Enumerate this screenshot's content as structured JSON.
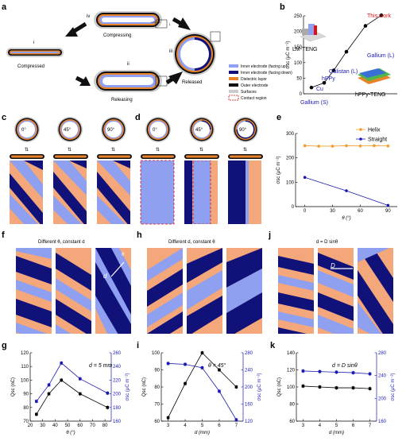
{
  "panels": {
    "a": {
      "letter": "a",
      "states": [
        "i",
        "ii",
        "iii",
        "iv"
      ],
      "captions": {
        "compressed": "Compressed",
        "compressing": "Compressing",
        "releasing": "Releasing",
        "released": "Released"
      },
      "legend": [
        {
          "label": "Inner electrode (facing up)",
          "color": "#8fa0f0"
        },
        {
          "label": "Inner electrode (facing down)",
          "color": "#11117a"
        },
        {
          "label": "Dielectric layer",
          "color": "#e8832a"
        },
        {
          "label": "Outer electrode",
          "color": "#111111"
        },
        {
          "label": "Surfaces",
          "color": "#cccccc"
        },
        {
          "label": "Contact region",
          "color": "#e01010"
        }
      ]
    },
    "b": {
      "letter": "b",
      "lm_label": "LM-TENG",
      "hppy_label": "hPPy-TENG"
    },
    "c": {
      "letter": "c",
      "angles": [
        "0°",
        "45°",
        "90°"
      ]
    },
    "d": {
      "letter": "d",
      "angles": [
        "0°",
        "45°",
        "90°"
      ]
    },
    "e": {
      "letter": "e"
    },
    "f": {
      "letter": "f",
      "title": "Different θ, constant d",
      "d_label": "d",
      "theta_label": "θ"
    },
    "h": {
      "letter": "h",
      "title": "Different d, constant θ"
    },
    "j": {
      "letter": "j",
      "title": "d = D sinθ",
      "D_label": "D"
    },
    "g": {
      "letter": "g",
      "annotation": "d = 5 mm"
    },
    "i": {
      "letter": "i",
      "annotation": "θ = 45°"
    },
    "k": {
      "letter": "k",
      "annotation": "d = D sinθ"
    }
  },
  "chart_data": [
    {
      "id": "b",
      "type": "scatter",
      "ylabel": "σsc (μC m⁻²)",
      "ylim": [
        0,
        250
      ],
      "yticks": [
        0,
        50,
        100,
        150,
        200,
        250
      ],
      "points": [
        {
          "label": "Gallium (S)",
          "y": 20,
          "color": "#1a1ab0"
        },
        {
          "label": "Cu",
          "y": 35,
          "color": "#1a1ab0"
        },
        {
          "label": "hPPy",
          "y": 75,
          "color": "#1a1ab0"
        },
        {
          "label": "Galistan (L)",
          "y": 135,
          "color": "#1a1ab0"
        },
        {
          "label": "Gallium (L)",
          "y": 218,
          "color": "#1a1ab0"
        },
        {
          "label": "This work",
          "y": 252,
          "color": "#e01010"
        }
      ]
    },
    {
      "id": "e",
      "type": "line",
      "xlabel": "θ (°)",
      "ylabel": "σsc (μC m⁻²)",
      "ylim": [
        0,
        300
      ],
      "yticks": [
        0,
        100,
        200,
        300
      ],
      "x": [
        0,
        30,
        60,
        90
      ],
      "legend_position": "top-right",
      "series": [
        {
          "name": "Helix",
          "color": "#f39c2b",
          "x": [
            0,
            15,
            30,
            45,
            60,
            75,
            90
          ],
          "values": [
            250,
            248,
            248,
            250,
            249,
            250,
            249
          ]
        },
        {
          "name": "Straight",
          "color": "#1a1ab0",
          "x": [
            0,
            45,
            90
          ],
          "values": [
            120,
            65,
            5
          ]
        }
      ]
    },
    {
      "id": "g",
      "type": "line",
      "xlabel": "θ (°)",
      "ylabel": "Qsc (nC)",
      "ylabel_right": "σsc (μC m⁻²)",
      "ylim": [
        70,
        120
      ],
      "yticks": [
        70,
        80,
        90,
        100,
        110,
        120
      ],
      "ylim_right": [
        160,
        260
      ],
      "yticks_right": [
        160,
        180,
        200,
        220,
        240,
        260
      ],
      "x": [
        20,
        30,
        40,
        50,
        60,
        70,
        80
      ],
      "series": [
        {
          "axis": "left",
          "color": "#000000",
          "x": [
            25,
            35,
            45,
            60,
            82
          ],
          "values": [
            75,
            90,
            100,
            90,
            80
          ]
        },
        {
          "axis": "right",
          "color": "#1a1ab0",
          "x": [
            25,
            35,
            45,
            60,
            82
          ],
          "values": [
            189,
            213,
            245,
            222,
            201
          ]
        }
      ]
    },
    {
      "id": "i",
      "type": "line",
      "xlabel": "d (mm)",
      "ylabel": "Qsc (nC)",
      "ylabel_right": "σsc (μC m⁻²)",
      "ylim": [
        60,
        100
      ],
      "yticks": [
        60,
        70,
        80,
        90,
        100
      ],
      "ylim_right": [
        120,
        280
      ],
      "yticks_right": [
        120,
        160,
        200,
        240,
        280
      ],
      "x": [
        3,
        4,
        5,
        6,
        7
      ],
      "series": [
        {
          "axis": "left",
          "color": "#000000",
          "x": [
            3,
            4,
            5,
            6,
            7
          ],
          "values": [
            62,
            82,
            100,
            90,
            80
          ]
        },
        {
          "axis": "right",
          "color": "#1a1ab0",
          "x": [
            3,
            4,
            5,
            6,
            7
          ],
          "values": [
            255,
            253,
            245,
            190,
            123
          ]
        }
      ]
    },
    {
      "id": "k",
      "type": "line",
      "xlabel": "d (mm)",
      "ylabel": "Qsc (nC)",
      "ylabel_right": "σsc (μC m⁻²)",
      "ylim": [
        60,
        140
      ],
      "yticks": [
        60,
        80,
        100,
        120,
        140
      ],
      "ylim_right": [
        160,
        280
      ],
      "yticks_right": [
        160,
        200,
        240,
        280
      ],
      "x": [
        3,
        4,
        5,
        6,
        7
      ],
      "series": [
        {
          "axis": "left",
          "color": "#000000",
          "x": [
            3,
            4,
            5,
            6,
            7
          ],
          "values": [
            101,
            100,
            99,
            99,
            98
          ]
        },
        {
          "axis": "right",
          "color": "#1a1ab0",
          "x": [
            3,
            4,
            5,
            6,
            7
          ],
          "values": [
            248,
            247,
            246,
            245,
            243
          ]
        }
      ]
    }
  ]
}
